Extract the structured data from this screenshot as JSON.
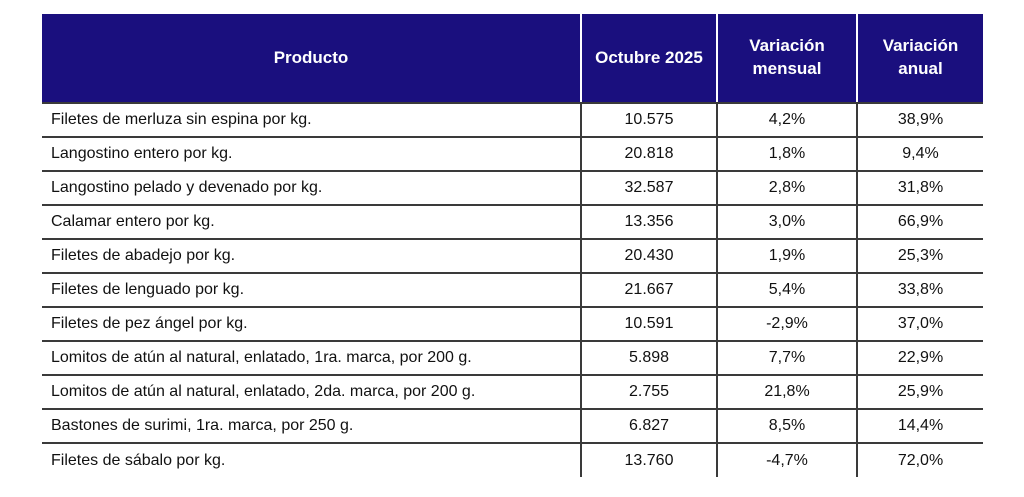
{
  "header": {
    "producto": "Producto",
    "octubre": "Octubre 2025",
    "mensual": "Variación mensual",
    "anual": "Variación anual"
  },
  "rows": [
    {
      "producto": "Filetes de merluza sin espina por kg.",
      "octubre": "10.575",
      "mensual": "4,2%",
      "anual": "38,9%"
    },
    {
      "producto": "Langostino entero por kg.",
      "octubre": "20.818",
      "mensual": "1,8%",
      "anual": "9,4%"
    },
    {
      "producto": "Langostino pelado y devenado por kg.",
      "octubre": "32.587",
      "mensual": "2,8%",
      "anual": "31,8%"
    },
    {
      "producto": "Calamar entero por kg.",
      "octubre": "13.356",
      "mensual": "3,0%",
      "anual": "66,9%"
    },
    {
      "producto": "Filetes de abadejo por kg.",
      "octubre": "20.430",
      "mensual": "1,9%",
      "anual": "25,3%"
    },
    {
      "producto": "Filetes de lenguado por kg.",
      "octubre": "21.667",
      "mensual": "5,4%",
      "anual": "33,8%"
    },
    {
      "producto": "Filetes de pez ángel por kg.",
      "octubre": "10.591",
      "mensual": "-2,9%",
      "anual": "37,0%"
    },
    {
      "producto": "Lomitos de atún al natural, enlatado, 1ra. marca, por 200 g.",
      "octubre": "5.898",
      "mensual": "7,7%",
      "anual": "22,9%"
    },
    {
      "producto": "Lomitos de atún al natural, enlatado, 2da. marca, por 200 g.",
      "octubre": "2.755",
      "mensual": "21,8%",
      "anual": "25,9%"
    },
    {
      "producto": "Bastones de surimi, 1ra. marca, por 250 g.",
      "octubre": "6.827",
      "mensual": "8,5%",
      "anual": "14,4%"
    },
    {
      "producto": "Filetes de sábalo por kg.",
      "octubre": "13.760",
      "mensual": "-4,7%",
      "anual": "72,0%"
    }
  ],
  "colors": {
    "header_bg": "#1A0F7E",
    "header_text": "#FFFFFF",
    "grid_line": "#3A3A3A",
    "header_separator": "#FFFFFF",
    "text": "#111111",
    "background": "#FFFFFF"
  }
}
